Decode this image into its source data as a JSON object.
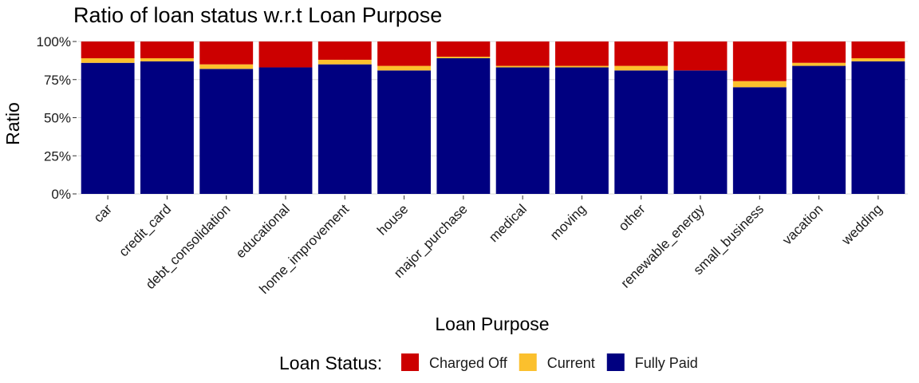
{
  "chart_data": {
    "type": "bar",
    "stacked": true,
    "title": "Ratio of loan status w.r.t Loan Purpose",
    "xlabel": "Loan Purpose",
    "ylabel": "Ratio",
    "ylim": [
      0,
      1
    ],
    "y_ticks": [
      "0%",
      "25%",
      "50%",
      "75%",
      "100%"
    ],
    "grid": true,
    "legend": {
      "title": "Loan Status:",
      "position": "bottom"
    },
    "categories": [
      "car",
      "credit_card",
      "debt_consolidation",
      "educational",
      "home_improvement",
      "house",
      "major_purchase",
      "medical",
      "moving",
      "other",
      "renewable_energy",
      "small_business",
      "vacation",
      "wedding"
    ],
    "series": [
      {
        "name": "Charged Off",
        "color": "#CC0000",
        "values": [
          0.11,
          0.11,
          0.15,
          0.17,
          0.12,
          0.16,
          0.1,
          0.16,
          0.16,
          0.16,
          0.19,
          0.26,
          0.14,
          0.11
        ]
      },
      {
        "name": "Current",
        "color": "#FBC02D",
        "values": [
          0.03,
          0.02,
          0.03,
          0.0,
          0.03,
          0.03,
          0.01,
          0.01,
          0.01,
          0.03,
          0.0,
          0.04,
          0.02,
          0.02
        ]
      },
      {
        "name": "Fully Paid",
        "color": "#000080",
        "values": [
          0.86,
          0.87,
          0.82,
          0.83,
          0.85,
          0.81,
          0.89,
          0.83,
          0.83,
          0.81,
          0.81,
          0.7,
          0.84,
          0.87
        ]
      }
    ]
  }
}
